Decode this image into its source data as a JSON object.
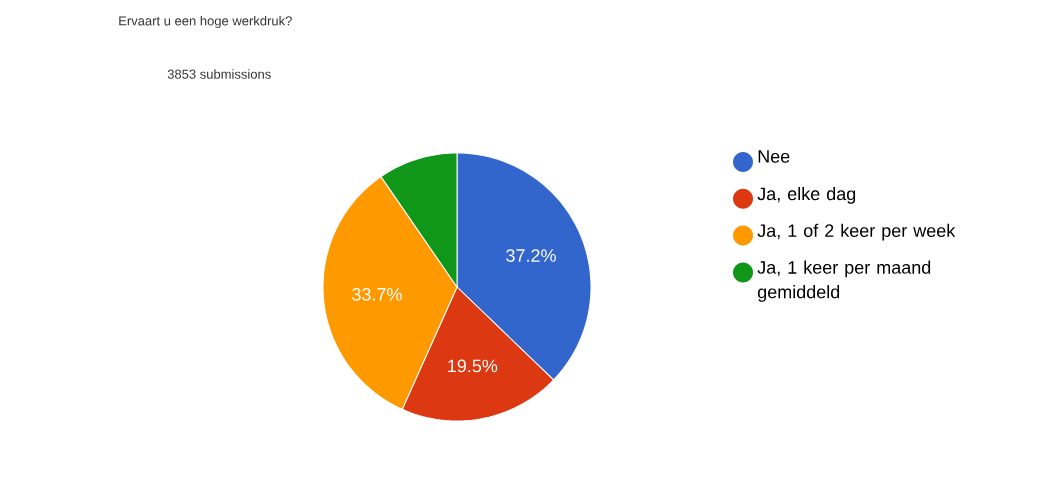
{
  "chart_data": {
    "type": "pie",
    "title": "Ervaart u een hoge werkdruk?",
    "subtitle": "3853 submissions",
    "categories": [
      "Nee",
      "Ja, elke dag",
      "Ja, 1 of 2 keer per week",
      "Ja, 1 keer per maand gemiddeld"
    ],
    "values": [
      37.2,
      19.5,
      33.7,
      9.6
    ],
    "colors": [
      "#3366cc",
      "#dc3912",
      "#ff9900",
      "#109618"
    ],
    "value_labels": [
      "37.2%",
      "19.5%",
      "33.7%",
      null
    ],
    "legend": "right"
  }
}
